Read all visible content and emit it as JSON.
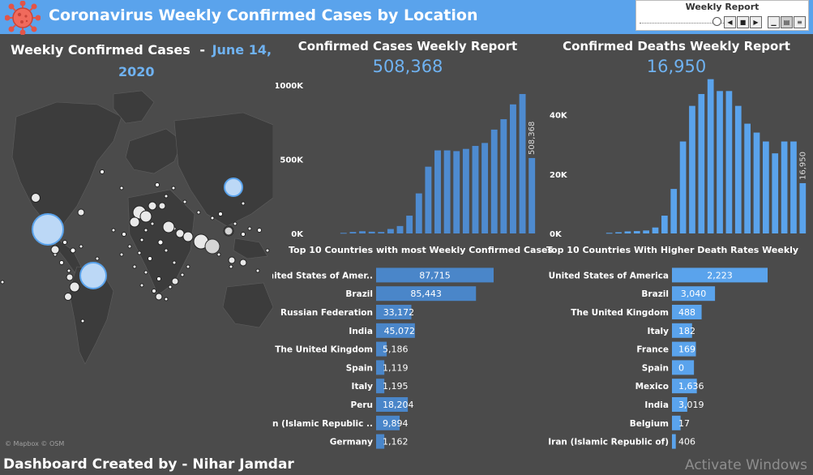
{
  "header": {
    "title": "Coronavirus Weekly Confirmed Cases by Location",
    "bg_color": "#5aa3ec",
    "logo_icon": "virus-icon"
  },
  "pager": {
    "label": "Weekly Report",
    "buttons": [
      "prev-icon",
      "stop-icon",
      "next-icon",
      "settings-icon",
      "list-icon",
      "menu-icon"
    ]
  },
  "left": {
    "heading": "Weekly Confirmed Cases",
    "dash": "-",
    "date_part1": "June 14,",
    "date_part2": "2020",
    "accent_color": "#6fb2f1",
    "map_credit": "© Mapbox © OSM"
  },
  "cases_report": {
    "title": "Confirmed Cases Weekly Report",
    "total": "508,368"
  },
  "deaths_report": {
    "title": "Confirmed Deaths Weekly Report",
    "total": "16,950"
  },
  "footer": {
    "credit": "Dashboard Created by - Nihar Jamdar",
    "watermark": "Activate Windows"
  },
  "chart_data": [
    {
      "id": "weekly-cases",
      "type": "bar",
      "ylim": [
        0,
        1000000
      ],
      "yticks": [
        {
          "value": 0,
          "label": "0K"
        },
        {
          "value": 500000,
          "label": "500K"
        },
        {
          "value": 1000000,
          "label": "1000K"
        }
      ],
      "values": [
        4000,
        10000,
        15000,
        12000,
        10000,
        30000,
        50000,
        120000,
        270000,
        450000,
        560000,
        560000,
        555000,
        570000,
        590000,
        610000,
        700000,
        770000,
        870000,
        940000,
        508368
      ],
      "annotation": "508,368",
      "color": "#4e8bd0"
    },
    {
      "id": "weekly-deaths",
      "type": "bar",
      "ylim": [
        0,
        50000
      ],
      "yticks": [
        {
          "value": 0,
          "label": "0K"
        },
        {
          "value": 20000,
          "label": "20K"
        },
        {
          "value": 40000,
          "label": "40K"
        }
      ],
      "values": [
        200,
        400,
        700,
        800,
        1000,
        2000,
        6000,
        15000,
        31000,
        43000,
        47000,
        52000,
        48000,
        48000,
        43000,
        37000,
        34000,
        31000,
        27000,
        31000,
        31000,
        16950
      ],
      "annotation": "16,950",
      "color": "#5aa3ec"
    },
    {
      "id": "top-cases",
      "type": "bar",
      "orientation": "horizontal",
      "title": "Top 10 Countries with most Weekly Confirmed Cases",
      "categories": [
        "United States of Amer..",
        "Brazil",
        "Russian Federation",
        "India",
        "The United Kingdom",
        "Spain",
        "Italy",
        "Peru",
        "Iran (Islamic Republic ..",
        "Germany"
      ],
      "values": [
        87715,
        85443,
        33172,
        45072,
        5186,
        1119,
        1195,
        18204,
        9894,
        1162
      ],
      "bar_lengths": [
        1.0,
        0.85,
        0.3,
        0.33,
        0.09,
        0.07,
        0.07,
        0.27,
        0.2,
        0.07
      ],
      "labels": [
        "87,715",
        "85,443",
        "33,172",
        "45,072",
        "5,186",
        "1,119",
        "1,195",
        "18,204",
        "9,894",
        "1,162"
      ],
      "color": "#4a86c9"
    },
    {
      "id": "top-deaths",
      "type": "bar",
      "orientation": "horizontal",
      "title": "Top 10 Countries With Higher Death Rates Weekly",
      "categories": [
        "United States of America",
        "Brazil",
        "The United Kingdom",
        "Italy",
        "France",
        "Spain",
        "Mexico",
        "India",
        "Belgium",
        "Iran (Islamic Republic of)"
      ],
      "values": [
        2223,
        3040,
        488,
        182,
        169,
        0,
        1636,
        3019,
        17,
        406
      ],
      "bar_lengths": [
        1.0,
        0.45,
        0.31,
        0.21,
        0.25,
        0.23,
        0.26,
        0.16,
        0.09,
        0.04
      ],
      "labels": [
        "2,223",
        "3,040",
        "488",
        "182",
        "169",
        "0",
        "1,636",
        "3,019",
        "17",
        "406"
      ],
      "color": "#5aa3ec"
    }
  ]
}
